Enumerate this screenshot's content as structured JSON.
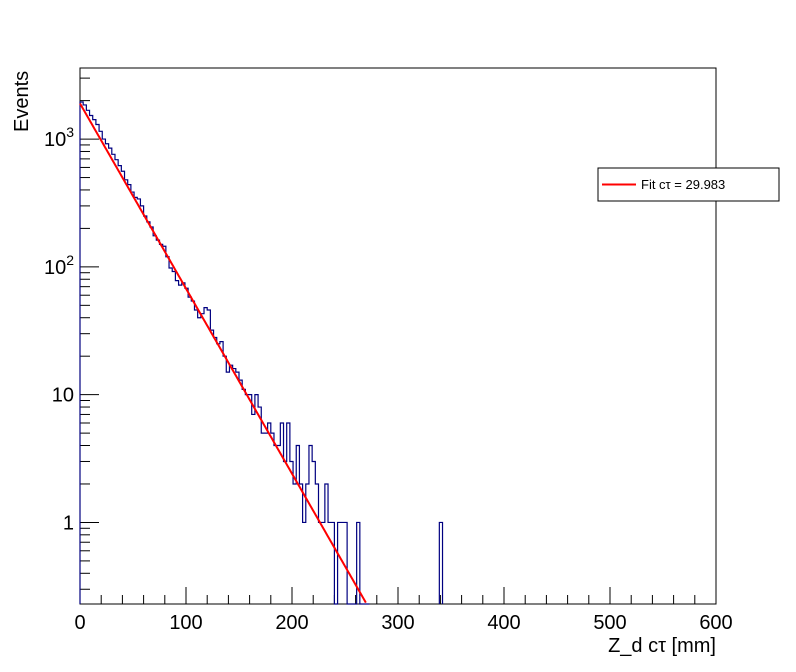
{
  "chart_data": {
    "type": "histogram",
    "xlabel": "Z_d cτ [mm]",
    "ylabel": "Events",
    "xlim": [
      0,
      600
    ],
    "ylim": [
      0.23,
      3600
    ],
    "y_scale": "log",
    "x_ticks": [
      0,
      100,
      200,
      300,
      400,
      500,
      600
    ],
    "x_tick_labels": [
      "0",
      "100",
      "200",
      "300",
      "400",
      "500",
      "600"
    ],
    "y_ticks": [
      1,
      10,
      100,
      1000
    ],
    "y_tick_labels": [
      "1",
      "10",
      "10^2",
      "10^3"
    ],
    "grid": false,
    "legend_position": "right",
    "colors": {
      "histogram": "#000080",
      "fit": "#ff0000"
    },
    "bin_width": 3,
    "series": [
      {
        "type": "step",
        "bins": [
          [
            0,
            1950
          ],
          [
            3,
            1850
          ],
          [
            6,
            1680
          ],
          [
            9,
            1530
          ],
          [
            12,
            1420
          ],
          [
            15,
            1300
          ],
          [
            18,
            1150
          ],
          [
            21,
            1000
          ],
          [
            24,
            920
          ],
          [
            27,
            850
          ],
          [
            30,
            760
          ],
          [
            33,
            690
          ],
          [
            36,
            620
          ],
          [
            39,
            560
          ],
          [
            42,
            480
          ],
          [
            45,
            440
          ],
          [
            48,
            385
          ],
          [
            51,
            350
          ],
          [
            54,
            340
          ],
          [
            57,
            300
          ],
          [
            60,
            250
          ],
          [
            63,
            225
          ],
          [
            66,
            205
          ],
          [
            69,
            175
          ],
          [
            72,
            162
          ],
          [
            75,
            150
          ],
          [
            78,
            145
          ],
          [
            81,
            120
          ],
          [
            84,
            98
          ],
          [
            87,
            92
          ],
          [
            90,
            78
          ],
          [
            93,
            72
          ],
          [
            96,
            75
          ],
          [
            99,
            68
          ],
          [
            102,
            58
          ],
          [
            105,
            54
          ],
          [
            108,
            46
          ],
          [
            111,
            40
          ],
          [
            114,
            43
          ],
          [
            117,
            48
          ],
          [
            120,
            46
          ],
          [
            123,
            32
          ],
          [
            126,
            28
          ],
          [
            129,
            25
          ],
          [
            132,
            26
          ],
          [
            135,
            20
          ],
          [
            138,
            15
          ],
          [
            141,
            17
          ],
          [
            144,
            16
          ],
          [
            147,
            15
          ],
          [
            150,
            13
          ],
          [
            153,
            11
          ],
          [
            156,
            10
          ],
          [
            159,
            10
          ],
          [
            162,
            7
          ],
          [
            165,
            10
          ],
          [
            168,
            8
          ],
          [
            171,
            5
          ],
          [
            174,
            5
          ],
          [
            177,
            6
          ],
          [
            180,
            5
          ],
          [
            183,
            4
          ],
          [
            186,
            4
          ],
          [
            189,
            6
          ],
          [
            192,
            3
          ],
          [
            195,
            6
          ],
          [
            198,
            3
          ],
          [
            201,
            2
          ],
          [
            204,
            4
          ],
          [
            207,
            2
          ],
          [
            210,
            1
          ],
          [
            213,
            2
          ],
          [
            216,
            4
          ],
          [
            219,
            3
          ],
          [
            222,
            2
          ],
          [
            225,
            1
          ],
          [
            228,
            1
          ],
          [
            231,
            2
          ],
          [
            234,
            1
          ],
          [
            237,
            1
          ],
          [
            240,
            0
          ],
          [
            243,
            1
          ],
          [
            246,
            1
          ],
          [
            249,
            1
          ],
          [
            252,
            0
          ],
          [
            255,
            0
          ],
          [
            258,
            0
          ],
          [
            261,
            1
          ],
          [
            264,
            0
          ],
          [
            267,
            0
          ],
          [
            270,
            0
          ],
          [
            339,
            1
          ]
        ]
      },
      {
        "type": "line",
        "name": "Fit cτ = 29.983",
        "function": "exponential",
        "amplitude": 1900,
        "ctau": 29.983,
        "x_range": [
          0,
          278
        ]
      }
    ]
  }
}
